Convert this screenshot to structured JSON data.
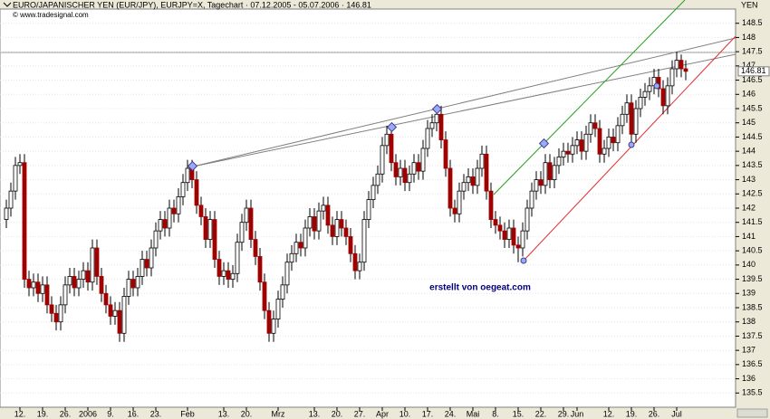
{
  "chart_data": {
    "type": "candlestick",
    "title": "EURO/JAPANISCHER YEN (EUR/JPY), EURJPY=X, Tagechart · 07.12.2005 - 05.07.2006 · 146.81",
    "source": "© www.tradesignal.com",
    "watermark": "erstellt von oegeat.com",
    "y_unit": "YEN",
    "up_color": "#ffffff",
    "down_color": "#a00000",
    "ylim": [
      135,
      149
    ],
    "yticks": [
      135.5,
      136,
      136.5,
      137,
      137.5,
      138,
      138.5,
      139,
      139.5,
      140,
      140.5,
      141,
      141.5,
      142,
      142.5,
      143,
      143.5,
      144,
      144.5,
      145,
      145.5,
      146,
      146.5,
      147,
      147.5,
      148,
      148.5
    ],
    "grid": true,
    "xticks": [
      {
        "value": 3,
        "label": "12."
      },
      {
        "value": 8,
        "label": "19."
      },
      {
        "value": 13,
        "label": "26."
      },
      {
        "value": 18,
        "label": "2006"
      },
      {
        "value": 23,
        "label": "9."
      },
      {
        "value": 28,
        "label": "16."
      },
      {
        "value": 33,
        "label": "23."
      },
      {
        "value": 40,
        "label": "Feb"
      },
      {
        "value": 48,
        "label": "13."
      },
      {
        "value": 53,
        "label": "20."
      },
      {
        "value": 60,
        "label": "Mrz"
      },
      {
        "value": 68,
        "label": "13."
      },
      {
        "value": 73,
        "label": "20."
      },
      {
        "value": 78,
        "label": "27."
      },
      {
        "value": 83,
        "label": "Apr"
      },
      {
        "value": 88,
        "label": "10."
      },
      {
        "value": 93,
        "label": "17."
      },
      {
        "value": 98,
        "label": "24."
      },
      {
        "value": 103,
        "label": "Mai"
      },
      {
        "value": 108,
        "label": "8."
      },
      {
        "value": 113,
        "label": "15."
      },
      {
        "value": 118,
        "label": "22."
      },
      {
        "value": 123,
        "label": "29."
      },
      {
        "value": 126,
        "label": "Jun"
      },
      {
        "value": 133,
        "label": "12."
      },
      {
        "value": 138,
        "label": "19."
      },
      {
        "value": 143,
        "label": "26."
      },
      {
        "value": 148,
        "label": "Jul"
      }
    ],
    "open": [
      141.6,
      142.0,
      142.6,
      143.5,
      143.6,
      139.5,
      139.2,
      139.4,
      139.0,
      139.3,
      138.6,
      138.3,
      138.0,
      138.6,
      139.3,
      139.6,
      139.2,
      139.5,
      139.8,
      139.4,
      140.6,
      139.6,
      139.0,
      138.6,
      138.2,
      138.4,
      137.6,
      138.9,
      139.5,
      139.2,
      139.6,
      140.2,
      139.9,
      140.6,
      141.2,
      141.6,
      141.3,
      142.0,
      141.8,
      142.4,
      142.9,
      143.4,
      143.0,
      142.1,
      141.7,
      140.9,
      141.6,
      140.2,
      139.6,
      139.8,
      139.5,
      139.7,
      140.8,
      141.5,
      142.0,
      140.9,
      140.3,
      139.4,
      138.4,
      137.6,
      138.1,
      138.8,
      139.3,
      140.1,
      140.4,
      140.8,
      140.6,
      141.3,
      141.7,
      141.2,
      141.9,
      142.1,
      141.4,
      141.0,
      141.6,
      141.3,
      141.0,
      140.4,
      139.8,
      140.1,
      141.6,
      142.3,
      142.8,
      143.2,
      144.2,
      144.6,
      143.6,
      143.1,
      143.4,
      142.9,
      143.2,
      143.6,
      143.3,
      144.1,
      144.8,
      145.0,
      145.3,
      144.4,
      143.4,
      142.0,
      141.8,
      142.6,
      142.9,
      143.1,
      142.8,
      143.4,
      143.9,
      142.6,
      141.6,
      141.4,
      141.2,
      140.9,
      141.3,
      140.7,
      140.6,
      141.2,
      142.0,
      142.6,
      143.0,
      142.8,
      143.6,
      143.0,
      143.5,
      143.8,
      144.0,
      143.9,
      144.2,
      144.4,
      144.0,
      144.6,
      145.0,
      144.8,
      143.9,
      144.1,
      144.5,
      144.3,
      144.9,
      145.3,
      145.7,
      144.6,
      145.5,
      145.9,
      146.1,
      146.3,
      146.6,
      146.2,
      145.6,
      146.3,
      146.9,
      147.2,
      146.9
    ],
    "high": [
      142.3,
      142.9,
      143.8,
      143.9,
      143.9,
      139.8,
      139.7,
      139.7,
      139.6,
      139.6,
      138.9,
      138.6,
      138.9,
      139.6,
      139.9,
      139.9,
      139.8,
      140.1,
      140.1,
      140.9,
      140.9,
      139.9,
      139.3,
      138.9,
      138.7,
      138.7,
      139.2,
      139.8,
      139.8,
      139.9,
      140.5,
      140.5,
      140.9,
      141.5,
      141.9,
      141.9,
      142.3,
      142.3,
      142.7,
      143.2,
      143.7,
      143.7,
      143.3,
      142.4,
      142.0,
      141.9,
      141.9,
      140.5,
      140.1,
      140.1,
      140.0,
      141.1,
      141.8,
      142.3,
      142.3,
      141.2,
      140.6,
      139.7,
      138.7,
      138.4,
      139.1,
      139.6,
      140.4,
      140.7,
      141.1,
      141.1,
      141.6,
      142.0,
      142.0,
      142.2,
      142.4,
      142.4,
      141.7,
      141.9,
      141.9,
      141.6,
      141.3,
      140.7,
      140.4,
      141.9,
      142.6,
      143.1,
      143.5,
      144.5,
      144.9,
      144.9,
      143.9,
      143.7,
      143.7,
      143.5,
      143.9,
      143.9,
      144.4,
      145.1,
      145.3,
      145.6,
      145.6,
      144.7,
      143.7,
      142.3,
      142.9,
      143.2,
      143.4,
      143.4,
      143.7,
      144.2,
      144.2,
      142.9,
      141.9,
      141.7,
      141.5,
      141.6,
      141.6,
      141.0,
      141.5,
      142.3,
      142.9,
      143.3,
      143.3,
      143.9,
      143.9,
      143.8,
      144.1,
      144.3,
      144.3,
      144.5,
      144.7,
      144.7,
      144.9,
      145.3,
      145.3,
      145.1,
      144.4,
      144.8,
      144.8,
      145.2,
      145.6,
      146.0,
      146.0,
      145.8,
      146.2,
      146.4,
      146.6,
      146.9,
      146.9,
      146.5,
      146.6,
      147.2,
      147.5,
      147.4,
      147.2
    ],
    "low": [
      141.3,
      141.7,
      142.3,
      143.2,
      139.2,
      138.9,
      138.9,
      138.7,
      138.7,
      138.3,
      138.0,
      137.7,
      137.7,
      138.3,
      139.0,
      138.9,
      138.9,
      139.2,
      139.1,
      139.1,
      139.3,
      138.7,
      138.3,
      137.9,
      137.9,
      137.3,
      137.3,
      138.6,
      138.9,
      138.9,
      139.3,
      139.6,
      139.6,
      140.3,
      140.9,
      141.0,
      141.0,
      141.5,
      141.5,
      142.1,
      142.6,
      142.7,
      141.8,
      141.4,
      140.6,
      140.6,
      139.9,
      139.3,
      139.3,
      139.2,
      139.2,
      139.4,
      140.5,
      141.2,
      140.6,
      140.0,
      139.1,
      138.1,
      137.3,
      137.3,
      137.8,
      138.5,
      139.0,
      139.8,
      140.1,
      140.3,
      140.3,
      141.0,
      140.9,
      140.9,
      141.6,
      141.1,
      140.7,
      140.7,
      141.0,
      140.7,
      140.1,
      139.5,
      139.5,
      139.8,
      141.3,
      142.0,
      142.5,
      142.9,
      143.9,
      143.3,
      142.8,
      142.8,
      142.6,
      142.6,
      142.9,
      143.0,
      143.0,
      143.8,
      144.5,
      144.7,
      144.1,
      143.1,
      141.7,
      141.5,
      141.5,
      142.3,
      142.6,
      142.5,
      142.5,
      143.1,
      142.3,
      141.3,
      141.1,
      140.9,
      140.6,
      140.6,
      140.4,
      140.1,
      140.3,
      140.9,
      141.7,
      142.3,
      142.5,
      142.5,
      142.7,
      142.7,
      143.2,
      143.5,
      143.6,
      143.6,
      143.9,
      143.7,
      143.7,
      144.3,
      144.5,
      143.6,
      143.6,
      143.8,
      144.0,
      144.0,
      144.6,
      145.0,
      144.2,
      144.3,
      145.2,
      145.6,
      145.8,
      146.0,
      145.9,
      145.3,
      145.3,
      146.0,
      146.6,
      146.6,
      146.5
    ],
    "close": [
      142.0,
      142.6,
      143.5,
      143.6,
      139.5,
      139.2,
      139.4,
      139.0,
      139.3,
      138.6,
      138.3,
      138.0,
      138.6,
      139.3,
      139.6,
      139.2,
      139.5,
      139.8,
      139.4,
      140.6,
      139.6,
      139.0,
      138.6,
      138.2,
      138.4,
      137.6,
      138.9,
      139.5,
      139.2,
      139.6,
      140.2,
      139.9,
      140.6,
      141.2,
      141.6,
      141.3,
      142.0,
      141.8,
      142.4,
      142.9,
      143.4,
      143.0,
      142.1,
      141.7,
      140.9,
      141.6,
      140.2,
      139.6,
      139.8,
      139.5,
      139.7,
      140.8,
      141.5,
      142.0,
      140.9,
      140.3,
      139.4,
      138.4,
      137.6,
      138.1,
      138.8,
      139.3,
      140.1,
      140.4,
      140.8,
      140.6,
      141.3,
      141.7,
      141.2,
      141.9,
      142.1,
      141.4,
      141.0,
      141.6,
      141.3,
      141.0,
      140.4,
      139.8,
      140.1,
      141.6,
      142.3,
      142.8,
      143.2,
      144.2,
      144.6,
      143.6,
      143.1,
      143.4,
      142.9,
      143.2,
      143.6,
      143.3,
      144.1,
      144.8,
      145.0,
      145.3,
      144.4,
      143.4,
      142.0,
      141.8,
      142.6,
      142.9,
      143.1,
      142.8,
      143.4,
      143.9,
      142.6,
      141.6,
      141.4,
      141.2,
      140.9,
      141.3,
      140.7,
      140.6,
      141.2,
      142.0,
      142.6,
      143.0,
      142.8,
      143.6,
      143.0,
      143.5,
      143.8,
      144.0,
      143.9,
      144.2,
      144.4,
      144.0,
      144.6,
      145.0,
      144.8,
      143.9,
      144.1,
      144.5,
      144.3,
      144.9,
      145.3,
      145.7,
      144.6,
      145.5,
      145.9,
      146.1,
      146.3,
      146.6,
      146.2,
      145.6,
      146.3,
      146.9,
      147.2,
      146.9,
      146.81
    ]
  }
}
